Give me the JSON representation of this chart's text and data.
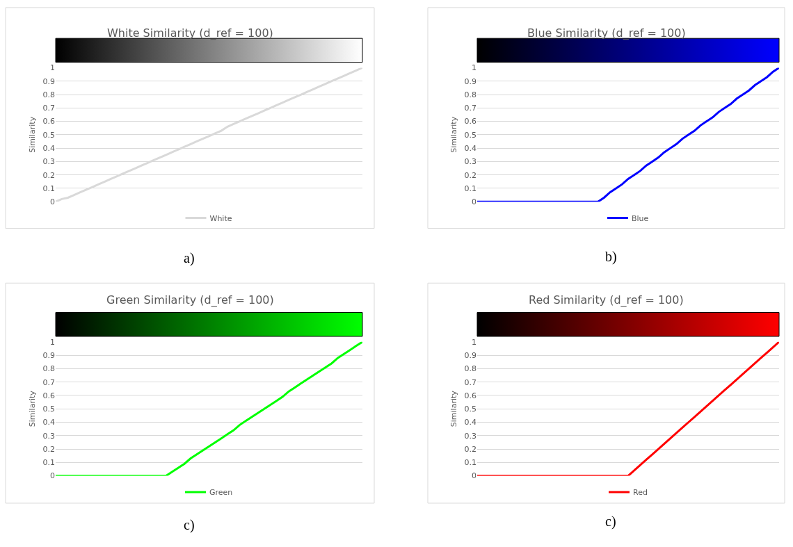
{
  "chart_data": [
    {
      "type": "line",
      "title": "White Similarity (d_ref = 100)",
      "ylabel": "Similarity",
      "categories": [
        null,
        null,
        null,
        null,
        null,
        null,
        null,
        null,
        null,
        null,
        null,
        null,
        null,
        null,
        null,
        null,
        null,
        null,
        null,
        null,
        null,
        null,
        null,
        null,
        null,
        null,
        null,
        null,
        null,
        null,
        null,
        null,
        null,
        null,
        null,
        null,
        null,
        null,
        null,
        null,
        null,
        null,
        null,
        null,
        null,
        null,
        null,
        null,
        null,
        null,
        null
      ],
      "series": [
        {
          "name": "White",
          "color": "#d9d9d9",
          "values": [
            0,
            0.02,
            0.03,
            0.05,
            0.07,
            0.09,
            0.11,
            0.13,
            0.15,
            0.17,
            0.19,
            0.21,
            0.23,
            0.25,
            0.27,
            0.29,
            0.31,
            0.33,
            0.35,
            0.37,
            0.39,
            0.41,
            0.43,
            0.45,
            0.47,
            0.49,
            0.51,
            0.53,
            0.56,
            0.58,
            0.6,
            0.62,
            0.64,
            0.66,
            0.68,
            0.7,
            0.72,
            0.74,
            0.76,
            0.78,
            0.8,
            0.82,
            0.84,
            0.86,
            0.88,
            0.9,
            0.92,
            0.94,
            0.96,
            0.98,
            1
          ]
        }
      ],
      "ylim": [
        0,
        1
      ],
      "yticks": [
        0,
        0.1,
        0.2,
        0.3,
        0.4,
        0.5,
        0.6,
        0.7,
        0.8,
        0.9,
        1
      ],
      "grid": "y",
      "legend": "bottom",
      "tick_labels": "y",
      "marker": "none",
      "annotations": [
        "a)"
      ]
    },
    {
      "type": "line",
      "title": "Blue Similarity (d_ref = 100)",
      "ylabel": "Similarity",
      "categories": [
        null,
        null,
        null,
        null,
        null,
        null,
        null,
        null,
        null,
        null,
        null,
        null,
        null,
        null,
        null,
        null,
        null,
        null,
        null,
        null,
        null,
        null,
        null,
        null,
        null,
        null,
        null,
        null,
        null,
        null,
        null,
        null,
        null,
        null,
        null,
        null,
        null,
        null,
        null,
        null,
        null,
        null,
        null,
        null,
        null,
        null,
        null,
        null,
        null,
        null,
        null
      ],
      "series": [
        {
          "name": "Blue",
          "color": "#0000ff",
          "values": [
            0,
            0,
            0,
            0,
            0,
            0,
            0,
            0,
            0,
            0,
            0,
            0,
            0,
            0,
            0,
            0,
            0,
            0,
            0,
            0,
            0,
            0.03,
            0.07,
            0.1,
            0.13,
            0.17,
            0.2,
            0.23,
            0.27,
            0.3,
            0.33,
            0.37,
            0.4,
            0.43,
            0.47,
            0.5,
            0.53,
            0.57,
            0.6,
            0.63,
            0.67,
            0.7,
            0.73,
            0.77,
            0.8,
            0.83,
            0.87,
            0.9,
            0.93,
            0.97,
            1
          ]
        }
      ],
      "ylim": [
        0,
        1
      ],
      "yticks": [
        0,
        0.1,
        0.2,
        0.3,
        0.4,
        0.5,
        0.6,
        0.7,
        0.8,
        0.9,
        1
      ],
      "grid": "y",
      "legend": "bottom",
      "tick_labels": "y",
      "marker": "none",
      "annotations": [
        "b)"
      ]
    },
    {
      "type": "line",
      "title": "Green Similarity (d_ref = 100)",
      "ylabel": "Similarity",
      "categories": [
        null,
        null,
        null,
        null,
        null,
        null,
        null,
        null,
        null,
        null,
        null,
        null,
        null,
        null,
        null,
        null,
        null,
        null,
        null,
        null,
        null,
        null,
        null,
        null,
        null,
        null,
        null,
        null,
        null,
        null,
        null,
        null,
        null,
        null,
        null,
        null,
        null,
        null,
        null,
        null,
        null,
        null,
        null,
        null,
        null,
        null,
        null,
        null,
        null,
        null,
        null
      ],
      "series": [
        {
          "name": "Green",
          "color": "#00ff00",
          "values": [
            0,
            0,
            0,
            0,
            0,
            0,
            0,
            0,
            0,
            0,
            0,
            0,
            0,
            0,
            0,
            0,
            0,
            0,
            0,
            0.03,
            0.06,
            0.09,
            0.13,
            0.16,
            0.19,
            0.22,
            0.25,
            0.28,
            0.31,
            0.34,
            0.38,
            0.41,
            0.44,
            0.47,
            0.5,
            0.53,
            0.56,
            0.59,
            0.63,
            0.66,
            0.69,
            0.72,
            0.75,
            0.78,
            0.81,
            0.84,
            0.88,
            0.91,
            0.94,
            0.97,
            1
          ]
        }
      ],
      "ylim": [
        0,
        1
      ],
      "yticks": [
        0,
        0.1,
        0.2,
        0.3,
        0.4,
        0.5,
        0.6,
        0.7,
        0.8,
        0.9,
        1
      ],
      "grid": "y",
      "legend": "bottom",
      "tick_labels": "y",
      "marker": "none",
      "annotations": [
        "c)"
      ]
    },
    {
      "type": "line",
      "title": "Red Similarity (d_ref = 100)",
      "ylabel": "Similarity",
      "categories": [
        null,
        null,
        null,
        null,
        null,
        null,
        null,
        null,
        null,
        null,
        null,
        null,
        null,
        null,
        null,
        null,
        null,
        null,
        null,
        null,
        null,
        null,
        null,
        null,
        null,
        null,
        null,
        null,
        null,
        null,
        null,
        null,
        null,
        null,
        null,
        null,
        null,
        null,
        null,
        null,
        null,
        null,
        null,
        null,
        null,
        null,
        null,
        null,
        null,
        null,
        null
      ],
      "series": [
        {
          "name": "Red",
          "color": "#ff0000",
          "values": [
            0,
            0,
            0,
            0,
            0,
            0,
            0,
            0,
            0,
            0,
            0,
            0,
            0,
            0,
            0,
            0,
            0,
            0,
            0,
            0,
            0,
            0,
            0,
            0,
            0,
            0,
            0.04,
            0.08,
            0.12,
            0.16,
            0.2,
            0.24,
            0.28,
            0.32,
            0.36,
            0.4,
            0.44,
            0.48,
            0.52,
            0.56,
            0.6,
            0.64,
            0.68,
            0.72,
            0.76,
            0.8,
            0.84,
            0.88,
            0.92,
            0.96,
            1
          ]
        }
      ],
      "ylim": [
        0,
        1
      ],
      "yticks": [
        0,
        0.1,
        0.2,
        0.3,
        0.4,
        0.5,
        0.6,
        0.7,
        0.8,
        0.9,
        1
      ],
      "grid": "y",
      "legend": "bottom",
      "tick_labels": "y",
      "marker": "none",
      "annotations": [
        "c)"
      ]
    }
  ]
}
